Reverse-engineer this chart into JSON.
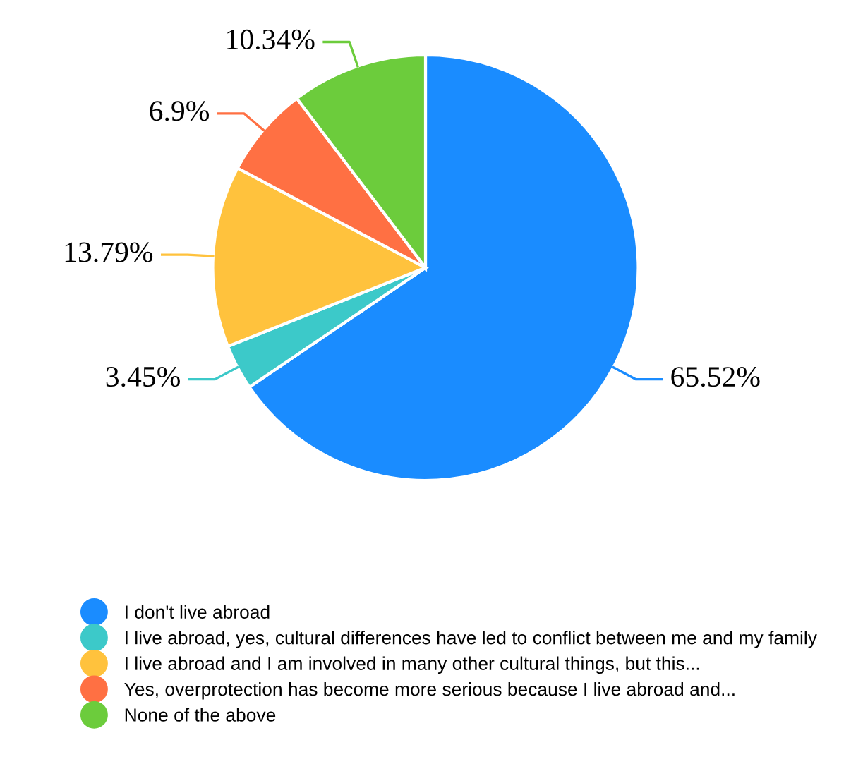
{
  "chart_data": {
    "type": "pie",
    "categories": [
      "I don't live abroad",
      "I live abroad, yes, cultural differences have led to conflict between me and my family",
      "I live abroad and I am involved in many other cultural things, but this...",
      "Yes, overprotection has become more serious because I live abroad and...",
      "None of the above"
    ],
    "values": [
      65.52,
      3.45,
      13.79,
      6.9,
      10.34
    ],
    "value_labels": [
      "65.52%",
      "3.45%",
      "13.79%",
      "6.9%",
      "10.34%"
    ],
    "colors": [
      "#1a8cff",
      "#3cc9c9",
      "#ffc23d",
      "#ff7043",
      "#6ccc3c"
    ],
    "legend": "bottom"
  }
}
